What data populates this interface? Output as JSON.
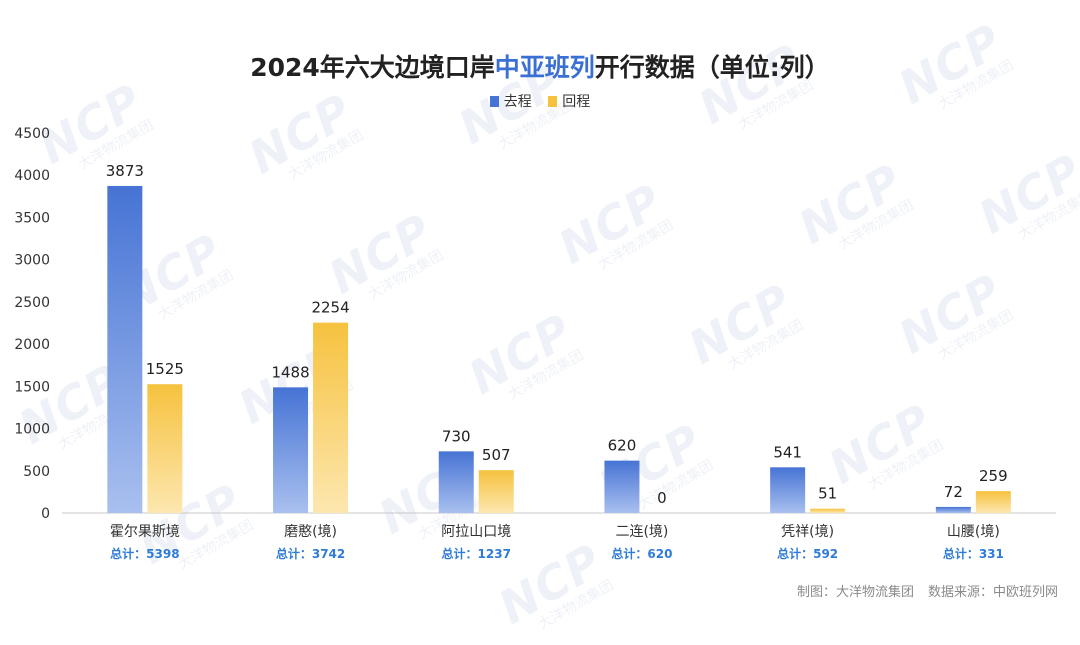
{
  "title_pre": "2024年六大边境口岸",
  "title_accent": "中亚班列",
  "title_post": "开行数据（单位:列）",
  "watermark": {
    "logo": "NCP",
    "sub": "大洋物流集团"
  },
  "footer": {
    "made_by": "制图：大洋物流集团",
    "source": "数据来源：中欧班列网"
  },
  "colors": {
    "outbound": "#4673d4",
    "inbound": "#f6c23e",
    "total_label": "#2f7bd8",
    "axis_text": "#333333"
  },
  "chart_data": {
    "type": "bar",
    "title": "2024年六大边境口岸中亚班列开行数据（单位:列）",
    "categories": [
      "霍尔果斯境",
      "磨憨(境)",
      "阿拉山口境",
      "二连(境)",
      "凭祥(境)",
      "山腰(境)"
    ],
    "series": [
      {
        "name": "去程",
        "values": [
          3873,
          1488,
          730,
          620,
          541,
          72
        ]
      },
      {
        "name": "回程",
        "values": [
          1525,
          2254,
          507,
          0,
          51,
          259
        ]
      }
    ],
    "totals": [
      "总计：5398",
      "总计：3742",
      "总计：1237",
      "总计：620",
      "总计：592",
      "总计：331"
    ],
    "yticks": [
      0,
      500,
      1000,
      1500,
      2000,
      2500,
      3000,
      3500,
      4000,
      4500
    ],
    "ylim": [
      0,
      4500
    ],
    "legend": "top-center",
    "grid": false
  }
}
